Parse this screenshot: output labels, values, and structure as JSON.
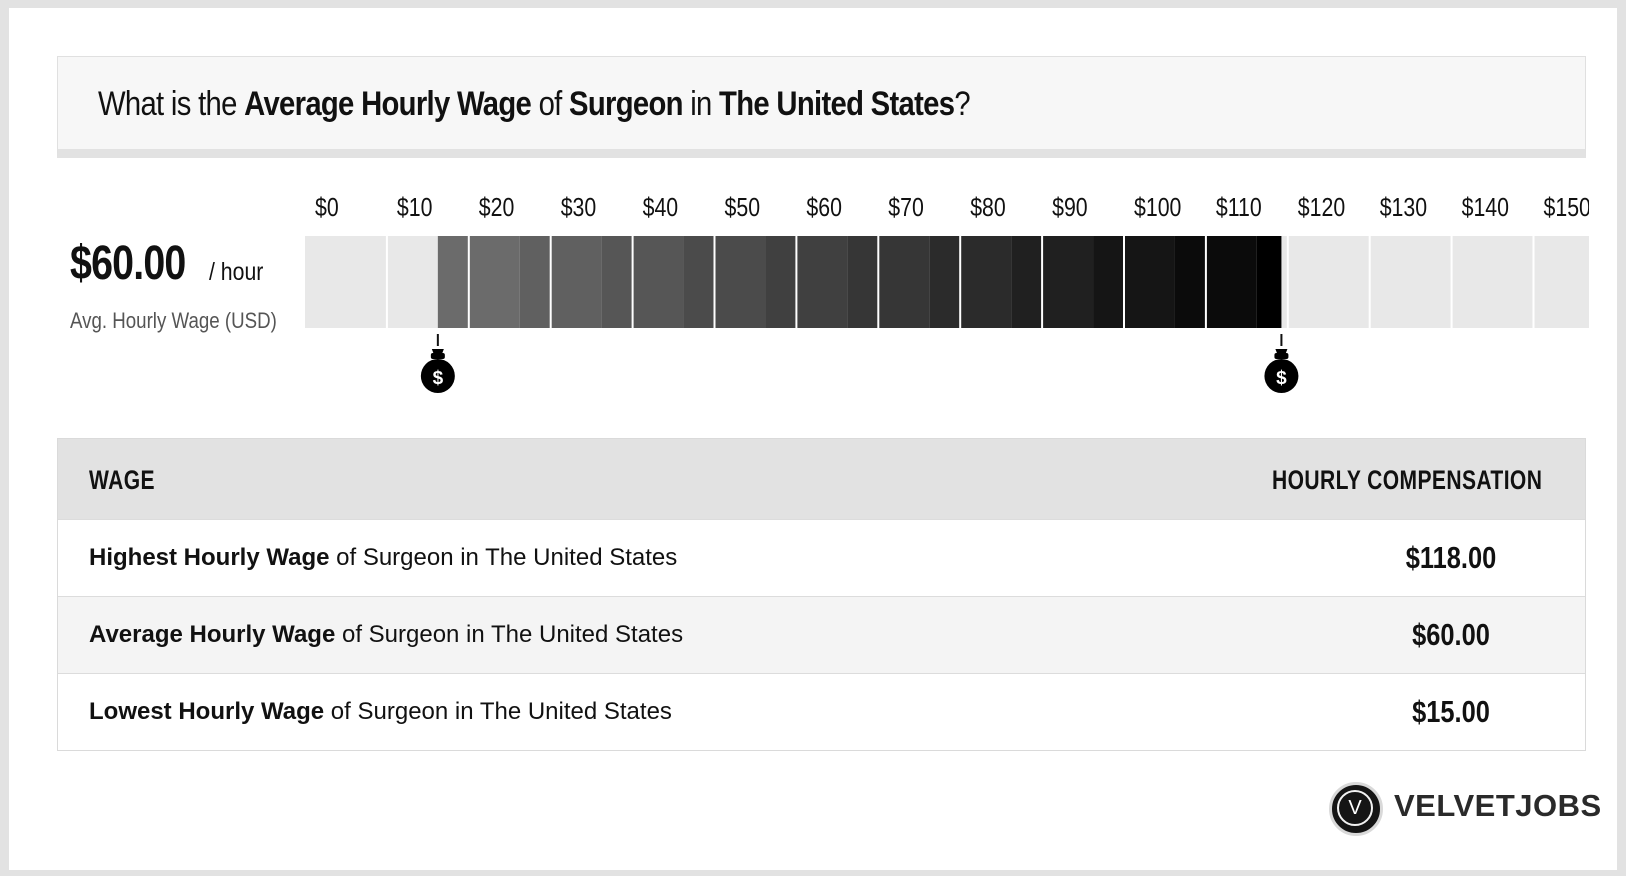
{
  "title": {
    "p1": "What is the ",
    "b1": "Average Hourly Wage",
    "p2": " of ",
    "b2": "Surgeon",
    "p3": " in ",
    "b3": "The United States",
    "p4": "?"
  },
  "summary": {
    "value": "$60.00",
    "unit": "/ hour",
    "caption": "Avg. Hourly Wage (USD)"
  },
  "chart_data": {
    "type": "bar",
    "title": "",
    "tick_labels": [
      "$0",
      "$10",
      "$20",
      "$30",
      "$40",
      "$50",
      "$60",
      "$70",
      "$80",
      "$90",
      "$100",
      "$110",
      "$120",
      "$130",
      "$140",
      "$150+"
    ],
    "xlim": [
      0,
      150
    ],
    "range": {
      "low": 15,
      "high": 118
    },
    "markers": [
      {
        "value": 15,
        "icon": "money-bag-icon"
      },
      {
        "value": 118,
        "icon": "money-bag-icon"
      }
    ],
    "colors": {
      "track": "#e8e8e8",
      "range_start": "#6b6b6b",
      "range_end": "#000000",
      "divider": "#ffffff"
    }
  },
  "table": {
    "headers": {
      "left": "WAGE",
      "right": "HOURLY COMPENSATION"
    },
    "rows": [
      {
        "bold": "Highest Hourly Wage",
        "rest": " of Surgeon in The United States",
        "value": "$118.00"
      },
      {
        "bold": "Average Hourly Wage",
        "rest": " of Surgeon in The United States",
        "value": "$60.00"
      },
      {
        "bold": "Lowest Hourly Wage",
        "rest": " of Surgeon in The United States",
        "value": "$15.00"
      }
    ]
  },
  "logo": {
    "letter": "V",
    "word": "VELVETJOBS"
  }
}
